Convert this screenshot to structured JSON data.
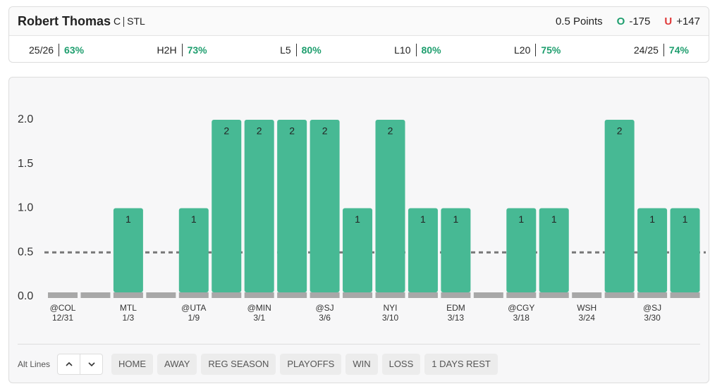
{
  "header": {
    "player": "Robert Thomas",
    "position": "C",
    "team": "STL",
    "line": "0.5 Points",
    "over": {
      "label": "O",
      "odds": "-175"
    },
    "under": {
      "label": "U",
      "odds": "+147"
    }
  },
  "stats": [
    {
      "label": "25/26",
      "value": "63%"
    },
    {
      "label": "H2H",
      "value": "73%"
    },
    {
      "label": "L5",
      "value": "80%"
    },
    {
      "label": "L10",
      "value": "80%"
    },
    {
      "label": "L20",
      "value": "75%"
    },
    {
      "label": "24/25",
      "value": "74%"
    }
  ],
  "chart_data": {
    "type": "bar",
    "categories": [
      "@COL",
      null,
      "MTL",
      null,
      "@UTA",
      null,
      "@MIN",
      null,
      "@SJ",
      null,
      "NYI",
      null,
      "EDM",
      null,
      "@CGY",
      null,
      "WSH",
      null,
      "@SJ",
      null
    ],
    "dates": [
      "12/31",
      null,
      "1/3",
      null,
      "1/9",
      null,
      "3/1",
      null,
      "3/6",
      null,
      "3/10",
      null,
      "3/13",
      null,
      "3/18",
      null,
      "3/24",
      null,
      "3/30",
      null
    ],
    "values": [
      0,
      0,
      1,
      0,
      1,
      2,
      2,
      2,
      2,
      1,
      2,
      1,
      1,
      0,
      1,
      1,
      0,
      2,
      1,
      1
    ],
    "color": "#47b994",
    "threshold": 0.5,
    "ylim": [
      0,
      2
    ],
    "yticks": [
      {
        "value": 0,
        "label": "0.0"
      },
      {
        "value": 0.5,
        "label": "0.5"
      },
      {
        "value": 1,
        "label": "1.0"
      },
      {
        "value": 1.5,
        "label": "1.5"
      },
      {
        "value": 2,
        "label": "2.0"
      }
    ],
    "grid": false
  },
  "footer": {
    "alt_lines": "Alt Lines",
    "filters": [
      "HOME",
      "AWAY",
      "REG SEASON",
      "PLAYOFFS",
      "WIN",
      "LOSS",
      "1 DAYS REST"
    ]
  }
}
